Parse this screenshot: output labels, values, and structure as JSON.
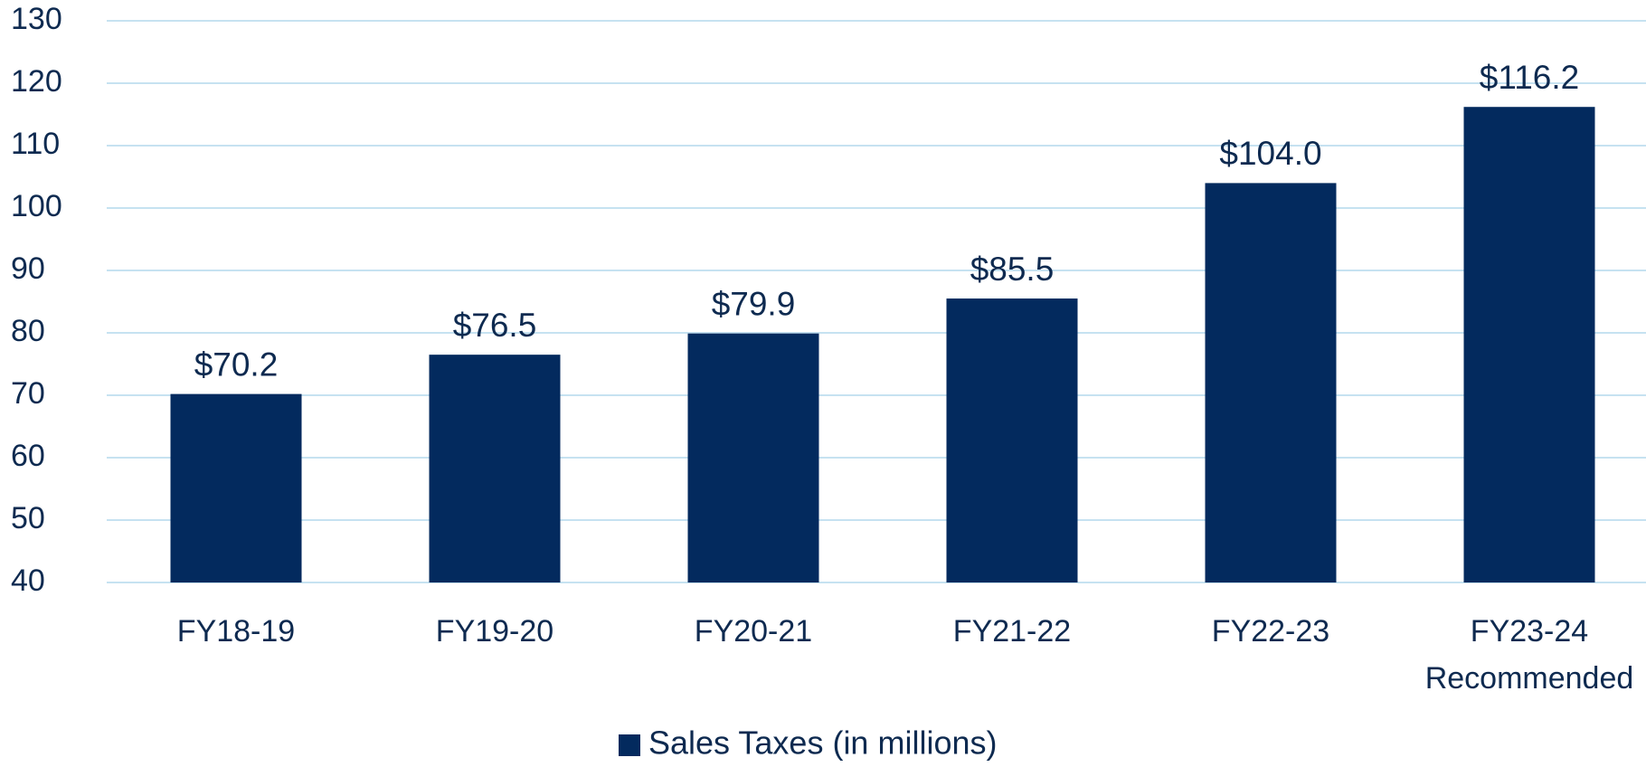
{
  "chart_data": {
    "type": "bar",
    "categories": [
      "FY18-19",
      "FY19-20",
      "FY20-21",
      "FY21-22",
      "FY22-23",
      "FY23-24 Recommended"
    ],
    "series": [
      {
        "name": "Sales Taxes (in millions)",
        "color": "#032a5e",
        "values": [
          70.2,
          76.5,
          79.9,
          85.5,
          104.0,
          116.2
        ],
        "value_labels": [
          "$70.2",
          "$76.5",
          "$79.9",
          "$85.5",
          "$104.0",
          "$116.2"
        ]
      }
    ],
    "ylim": [
      40,
      130
    ],
    "yticks": [
      40,
      50,
      60,
      70,
      80,
      90,
      100,
      110,
      120,
      130
    ],
    "grid": true,
    "legend": "bottom"
  }
}
